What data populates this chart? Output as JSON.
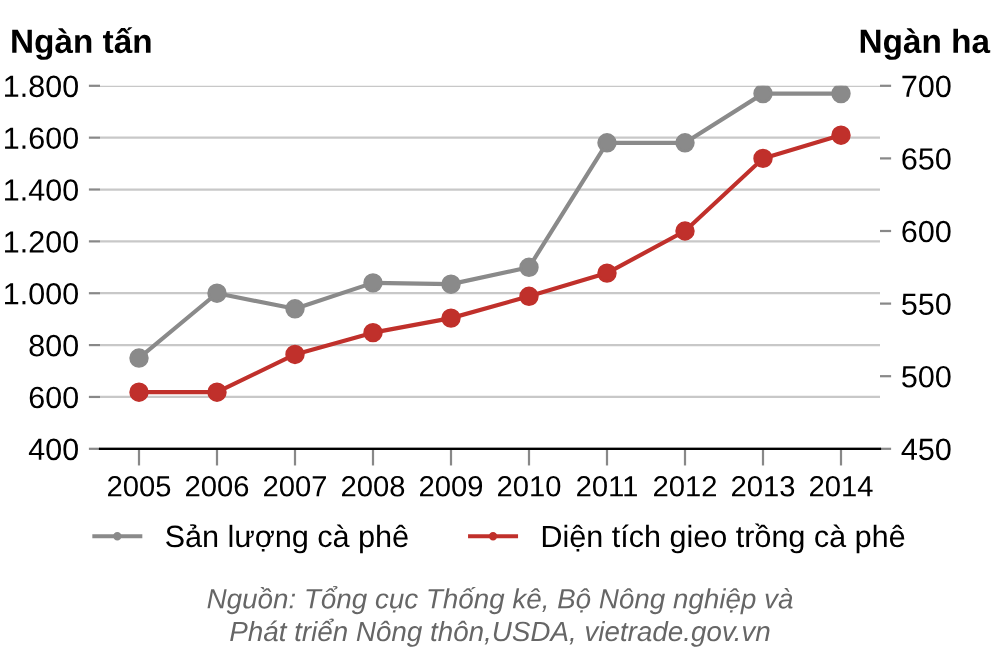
{
  "chart_data": {
    "type": "line",
    "ylabel": "Ngàn tấn",
    "y2label": "Ngàn ha",
    "categories": [
      "2005",
      "2006",
      "2007",
      "2008",
      "2009",
      "2010",
      "2011",
      "2012",
      "2013",
      "2014"
    ],
    "series": [
      {
        "name": "Sản lượng cà phê",
        "color": "#8a8a8a",
        "values": [
          750,
          1000,
          940,
          1040,
          1035,
          1100,
          1580,
          1580,
          1770,
          1770
        ]
      },
      {
        "name": "Diện tích gieo trồng cà phê",
        "color": "#c0302b",
        "axis": "y2",
        "values": [
          489,
          489,
          515,
          530,
          540,
          555,
          571,
          600,
          650,
          666
        ]
      }
    ],
    "ylim": [
      400,
      1800
    ],
    "yticks": [
      {
        "value": 400,
        "label": "400"
      },
      {
        "value": 600,
        "label": "600"
      },
      {
        "value": 800,
        "label": "800"
      },
      {
        "value": 1000,
        "label": "1.000"
      },
      {
        "value": 1200,
        "label": "1.200"
      },
      {
        "value": 1400,
        "label": "1.400"
      },
      {
        "value": 1600,
        "label": "1.600"
      },
      {
        "value": 1800,
        "label": "1.800"
      }
    ],
    "y2lim": [
      450,
      700
    ],
    "y2ticks": [
      450,
      500,
      550,
      600,
      650,
      700
    ],
    "grid": "y",
    "legend": "bottom",
    "marker": "circle",
    "line_style": "solid",
    "annotations": [
      "Nguồn: Tổng cục Thống kê, Bộ Nông nghiệp và\nPhát triển Nông thôn,USDA, vietrade.gov.vn"
    ]
  }
}
